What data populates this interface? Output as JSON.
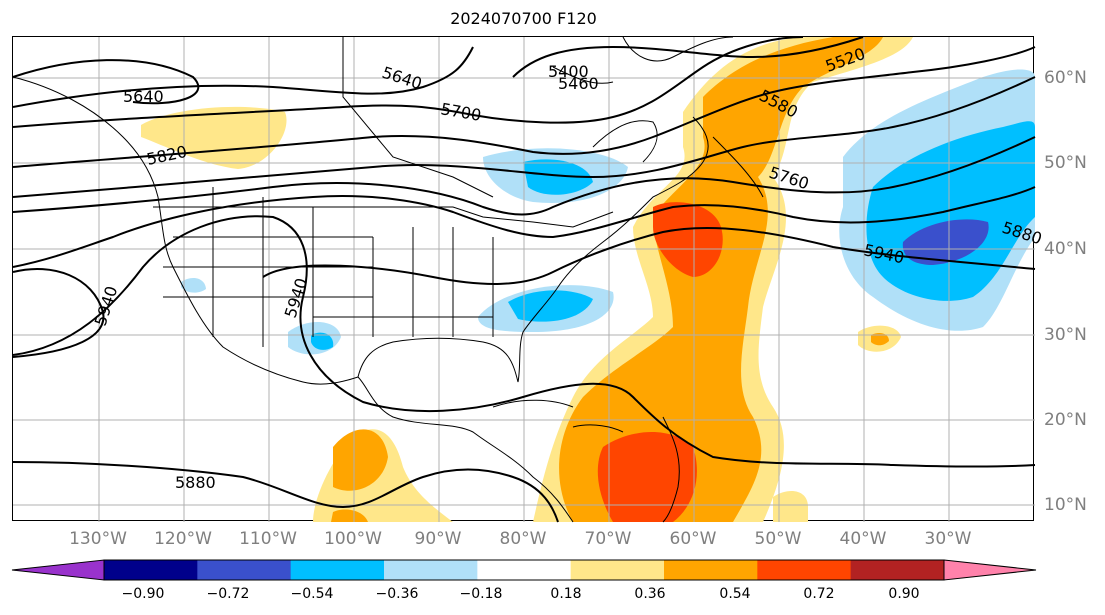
{
  "title": "2024070700 F120",
  "longitude_labels": [
    "130°W",
    "120°W",
    "110°W",
    "100°W",
    "90°W",
    "80°W",
    "70°W",
    "60°W",
    "50°W",
    "40°W",
    "30°W"
  ],
  "latitude_labels": [
    "60°N",
    "50°N",
    "40°N",
    "30°N",
    "20°N",
    "10°N"
  ],
  "colorbar": {
    "ticks": [
      "−0.90",
      "−0.72",
      "−0.54",
      "−0.36",
      "−0.18",
      "0.18",
      "0.36",
      "0.54",
      "0.72",
      "0.90"
    ],
    "colors": [
      "#9932cc",
      "#00008b",
      "#3a50cc",
      "#00bfff",
      "#b0e0f8",
      "#ffffff",
      "#ffe78a",
      "#ffa500",
      "#ff4500",
      "#b22222",
      "#ff82ab"
    ],
    "extend": "both"
  },
  "contour_labels": [
    "5640",
    "5820",
    "5640",
    "5700",
    "5400",
    "5460",
    "5520",
    "5580",
    "5760",
    "5940",
    "5880",
    "5940",
    "5880"
  ],
  "legend_colors": {
    "negative": "#00bfff",
    "positive": "#ffa500",
    "strong_positive": "#ff4500"
  }
}
